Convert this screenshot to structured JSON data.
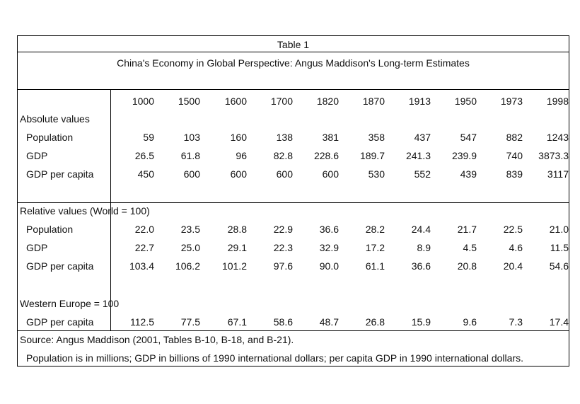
{
  "table_title": "Table 1",
  "table_subtitle": "China's Economy in Global Perspective: Angus Maddison's Long-term Estimates",
  "years": [
    "1000",
    "1500",
    "1600",
    "1700",
    "1820",
    "1870",
    "1913",
    "1950",
    "1973",
    "1998"
  ],
  "section_absolute": "Absolute values",
  "absolute_rows": [
    {
      "label": "Population",
      "values": [
        "59",
        "103",
        "160",
        "138",
        "381",
        "358",
        "437",
        "547",
        "882",
        "1243"
      ]
    },
    {
      "label": "GDP",
      "values": [
        "26.5",
        "61.8",
        "96",
        "82.8",
        "228.6",
        "189.7",
        "241.3",
        "239.9",
        "740",
        "3873.3"
      ]
    },
    {
      "label": "GDP per capita",
      "values": [
        "450",
        "600",
        "600",
        "600",
        "600",
        "530",
        "552",
        "439",
        "839",
        "3117"
      ]
    }
  ],
  "section_relative": "Relative values (World = 100)",
  "relative_rows": [
    {
      "label": "Population",
      "values": [
        "22.0",
        "23.5",
        "28.8",
        "22.9",
        "36.6",
        "28.2",
        "24.4",
        "21.7",
        "22.5",
        "21.0"
      ]
    },
    {
      "label": "GDP",
      "values": [
        "22.7",
        "25.0",
        "29.1",
        "22.3",
        "32.9",
        "17.2",
        "8.9",
        "4.5",
        "4.6",
        "11.5"
      ]
    },
    {
      "label": "GDP per capita",
      "values": [
        "103.4",
        "106.2",
        "101.2",
        "97.6",
        "90.0",
        "61.1",
        "36.6",
        "20.8",
        "20.4",
        "54.6"
      ]
    }
  ],
  "section_western": "Western Europe = 100",
  "western_rows": [
    {
      "label": "GDP per capita",
      "values": [
        "112.5",
        "77.5",
        "67.1",
        "58.6",
        "48.7",
        "26.8",
        "15.9",
        "9.6",
        "7.3",
        "17.4"
      ]
    }
  ],
  "source": "Source: Angus Maddison (2001, Tables B-10, B-18, and B-21).",
  "note": "Population is in millions; GDP in billions of 1990 international dollars; per capita GDP in 1990 international dollars."
}
